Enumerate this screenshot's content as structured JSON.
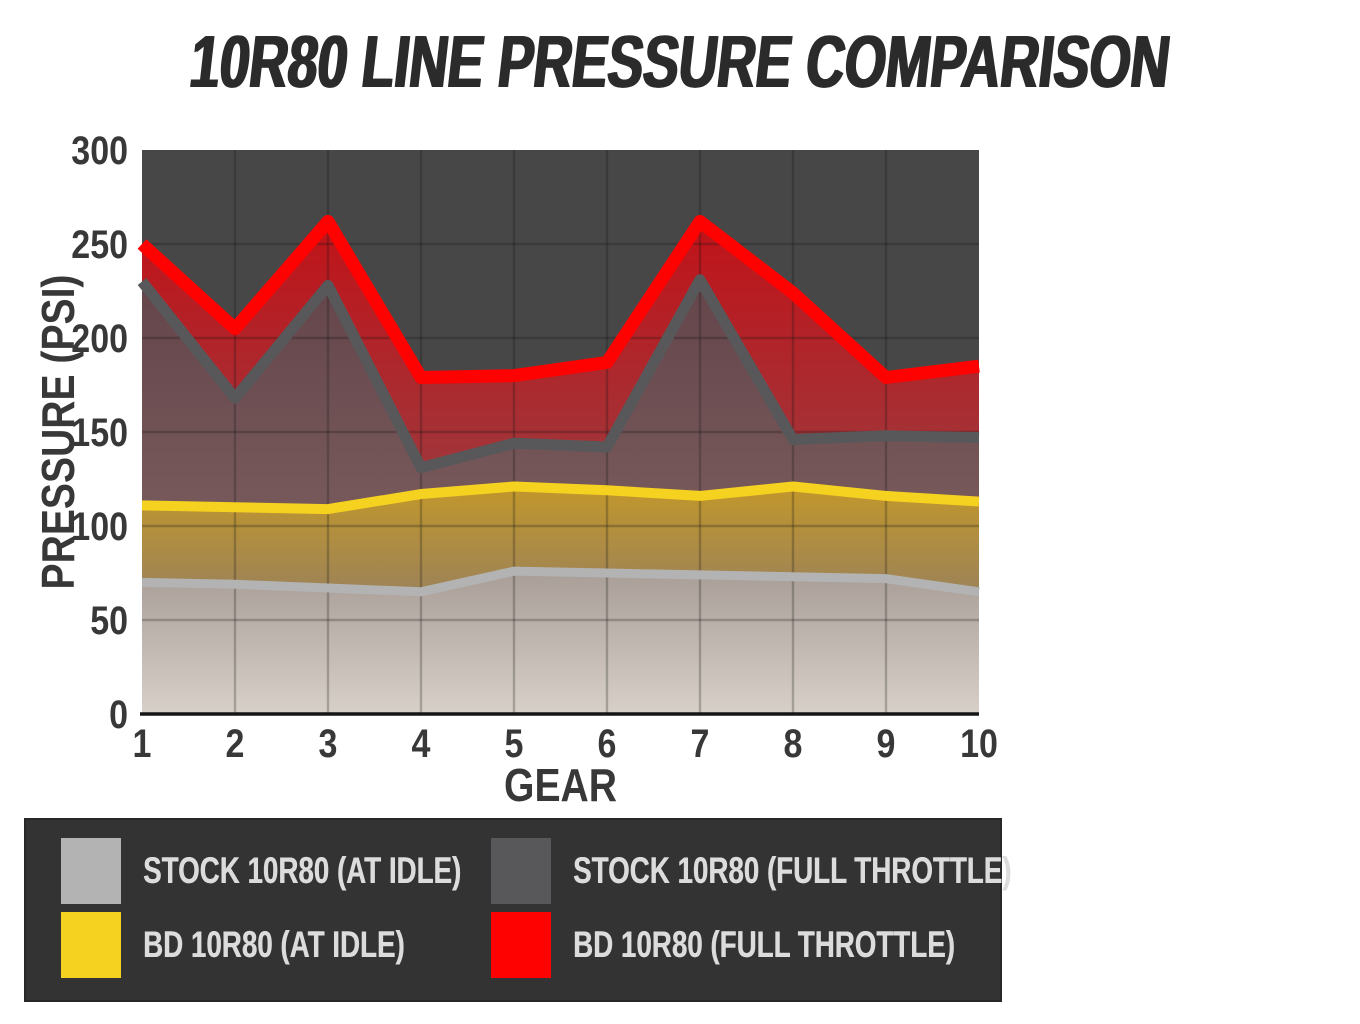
{
  "chart_data": {
    "type": "area",
    "title": "10R80 LINE PRESSURE COMPARISON",
    "xlabel": "GEAR",
    "ylabel": "PRESSURE (PSI)",
    "x": [
      1,
      2,
      3,
      4,
      5,
      6,
      7,
      8,
      9,
      10
    ],
    "ylim": [
      0,
      300
    ],
    "y_ticks": [
      0,
      50,
      100,
      150,
      200,
      250,
      300
    ],
    "grid": true,
    "legend_position": "bottom",
    "series": [
      {
        "key": "stock_idle",
        "label": "STOCK 10R80 (AT IDLE)",
        "color": "#b3b3b3",
        "values": [
          70,
          69,
          67,
          65,
          76,
          75,
          74,
          73,
          72,
          65
        ]
      },
      {
        "key": "stock_full",
        "label": "STOCK 10R80 (FULL THROTTLE)",
        "color": "#58585a",
        "values": [
          230,
          168,
          228,
          131,
          144,
          142,
          231,
          146,
          148,
          147
        ]
      },
      {
        "key": "bd_idle",
        "label": "BD 10R80 (AT IDLE)",
        "color": "#f5d120",
        "values": [
          111,
          110,
          109,
          117,
          121,
          119,
          116,
          121,
          116,
          113
        ]
      },
      {
        "key": "bd_full",
        "label": "BD 10R80 (FULL THROTTLE)",
        "color": "#fe0202",
        "values": [
          250,
          205,
          262,
          179,
          180,
          187,
          262,
          224,
          179,
          185
        ]
      }
    ]
  },
  "colors": {
    "plot_background": "#474747",
    "gridline": "rgba(20,20,20,0.25)",
    "axis_line": "#161616",
    "tick_text": "#383838",
    "title_text": "#2b2b2b",
    "legend_background": "#333333",
    "legend_text": "#dcdcdc"
  }
}
